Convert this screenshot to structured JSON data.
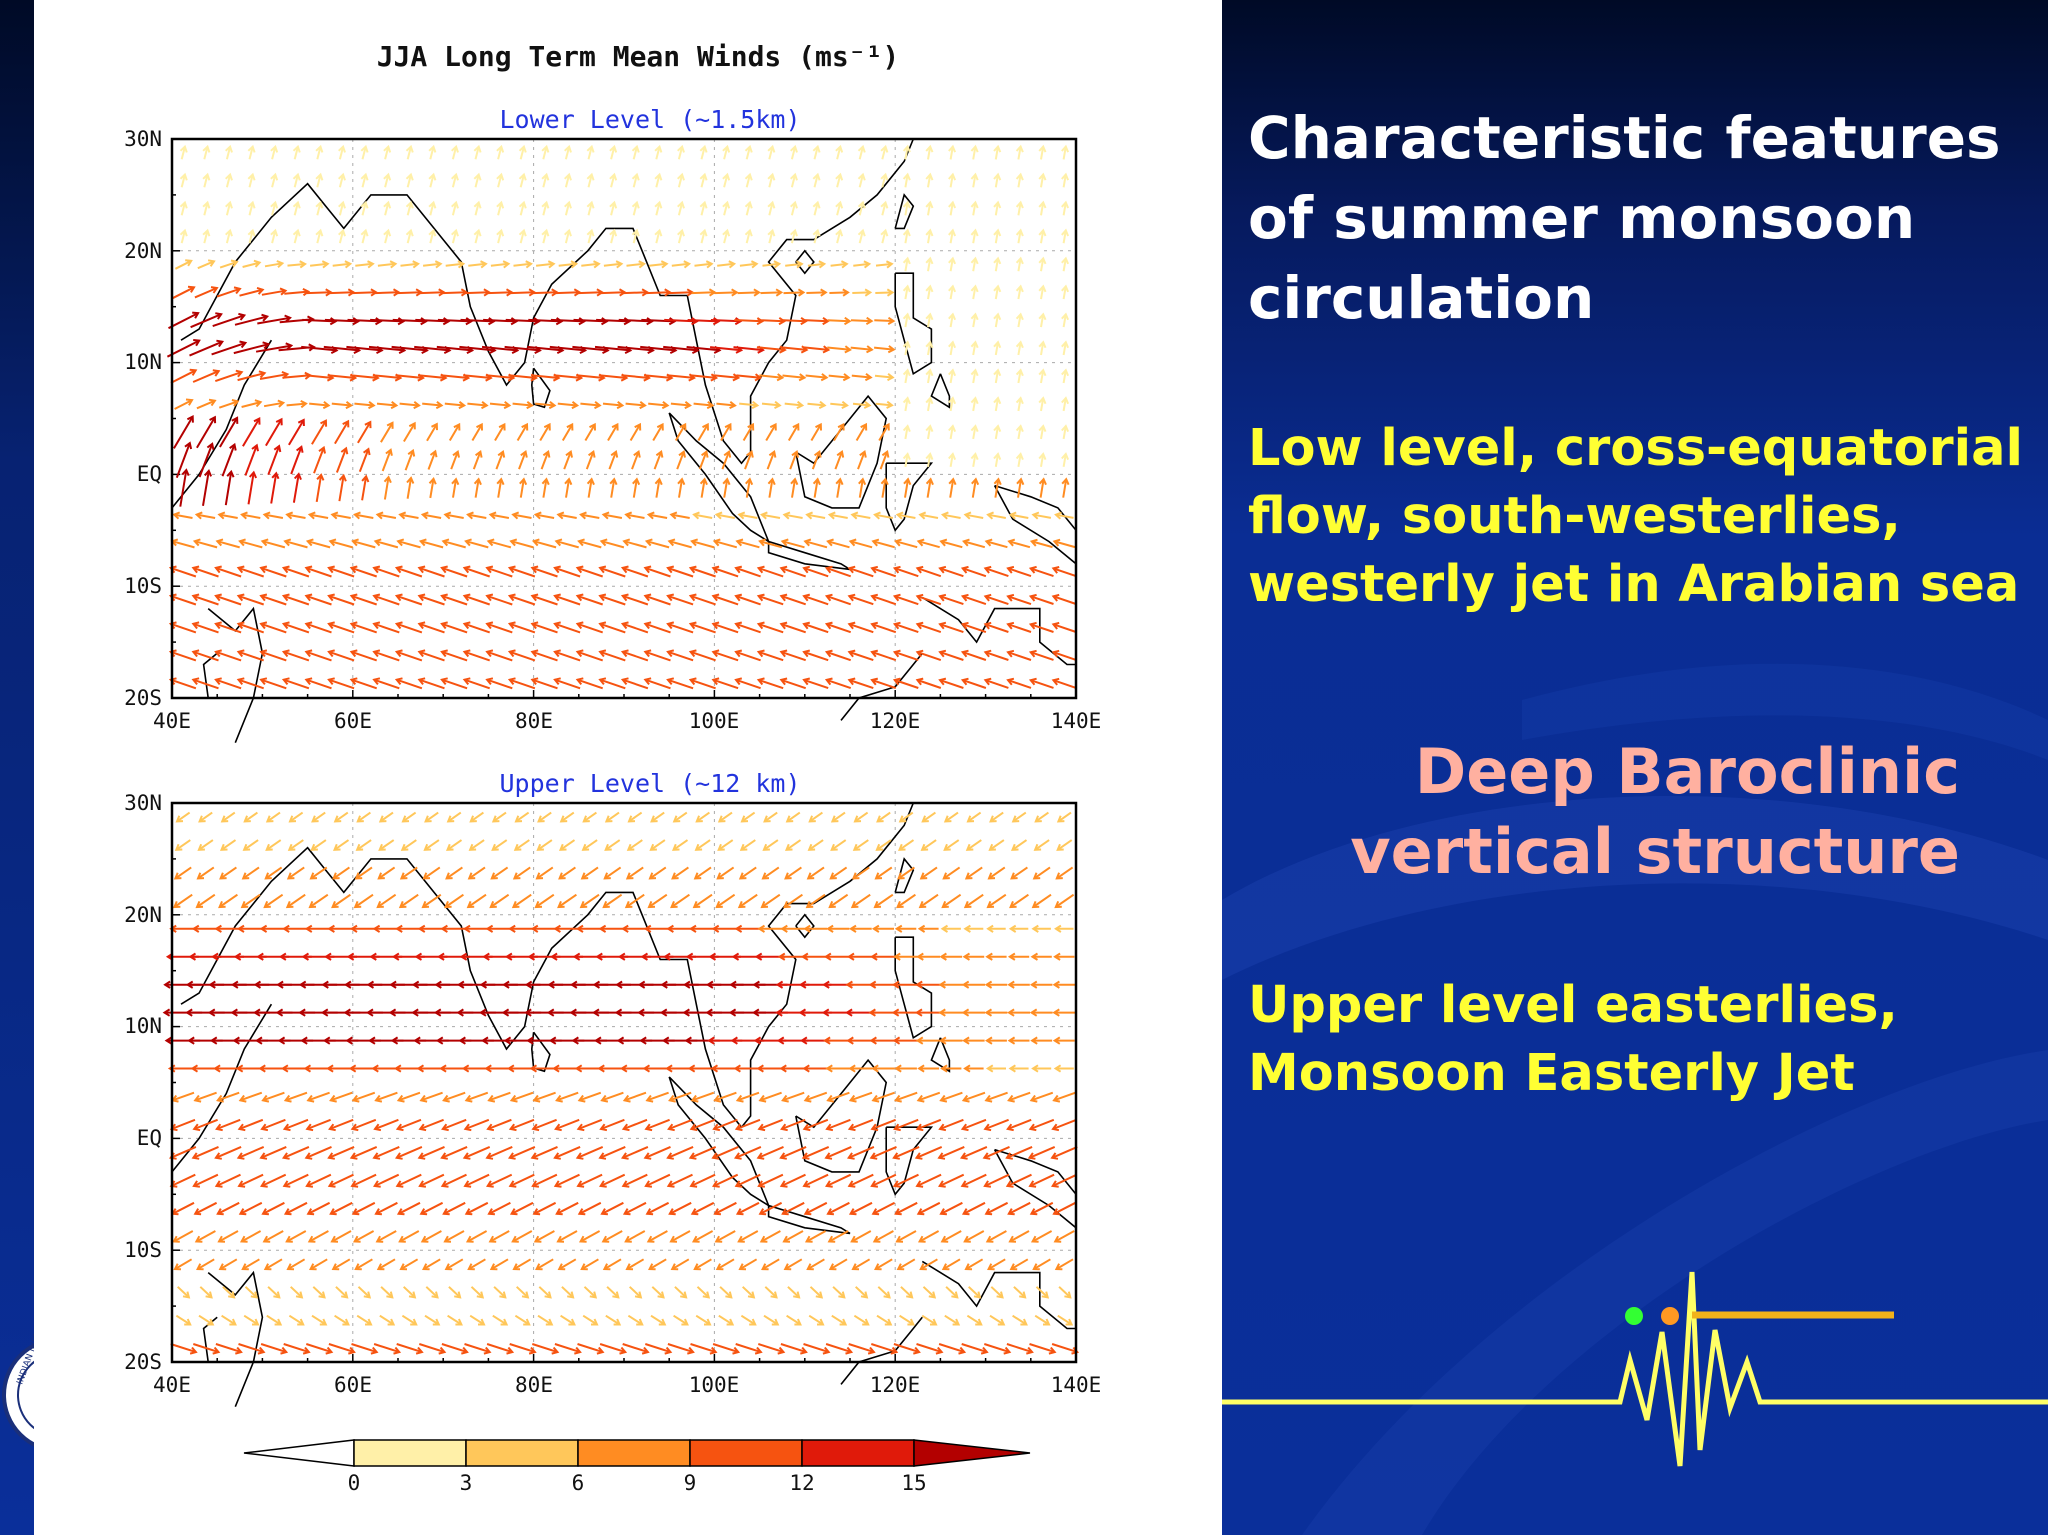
{
  "slide": {
    "heading": "Characteristic features of summer monsoon circulation",
    "low_level_text": "Low level, cross-equatorial flow, south-westerlies, westerly jet in Arabian sea",
    "deep_baroclinic_text": "Deep Baroclinic vertical structure",
    "upper_level_text": "Upper level easterlies, Monsoon Easterly Jet",
    "colors": {
      "background": "#0a2f9a",
      "heading": "#ffffff",
      "highlight": "#ffff33",
      "emphasis": "#ffb0a0"
    }
  },
  "chart_data": {
    "type": "vector_field",
    "title": "JJA Long Term Mean Winds (ms⁻¹)",
    "x_ticks": [
      "40E",
      "60E",
      "80E",
      "100E",
      "120E",
      "140E"
    ],
    "y_ticks": [
      "30N",
      "20N",
      "10N",
      "EQ",
      "10S",
      "20S"
    ],
    "x_range": [
      40,
      140
    ],
    "y_range": [
      -20,
      30
    ],
    "panels": [
      {
        "id": "lower",
        "title": "Lower Level (~1.5km)"
      },
      {
        "id": "upper",
        "title": "Upper Level (~12 km)"
      }
    ],
    "colorbar": {
      "ticks": [
        "0",
        "3",
        "6",
        "9",
        "12",
        "15"
      ],
      "values": [
        0,
        3,
        6,
        9,
        12,
        15
      ],
      "colors": [
        "#fff0a8",
        "#ffc75a",
        "#ff8c22",
        "#f65310",
        "#e01a0a",
        "#b30000"
      ],
      "units": "ms⁻¹"
    }
  }
}
